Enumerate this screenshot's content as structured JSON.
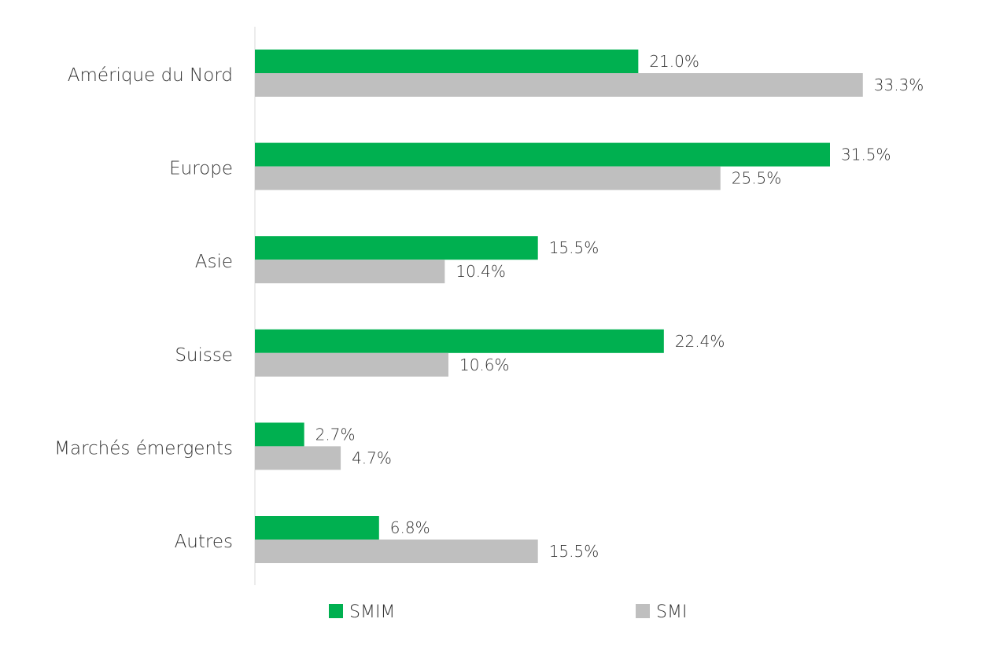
{
  "chart_data": {
    "type": "bar",
    "orientation": "horizontal",
    "title": "",
    "xlabel": "",
    "ylabel": "",
    "categories": [
      "Amérique du Nord",
      "Europe",
      "Asie",
      "Suisse",
      "Marchés émergents",
      "Autres"
    ],
    "series": [
      {
        "name": "SMIM",
        "color": "#00b050",
        "values": [
          21.0,
          31.5,
          15.5,
          22.4,
          2.7,
          6.8
        ],
        "labels": [
          "21.0%",
          "31.5%",
          "15.5%",
          "22.4%",
          "2.7%",
          "6.8%"
        ]
      },
      {
        "name": "SMI",
        "color": "#bfbfbf",
        "values": [
          33.3,
          25.5,
          10.4,
          10.6,
          4.7,
          15.5
        ],
        "labels": [
          "33.3%",
          "25.5%",
          "10.4%",
          "10.6%",
          "4.7%",
          "15.5%"
        ]
      }
    ],
    "xlim": [
      0,
      35
    ],
    "grid": false,
    "legend_position": "bottom",
    "axis_color": "#d9d9d9"
  }
}
